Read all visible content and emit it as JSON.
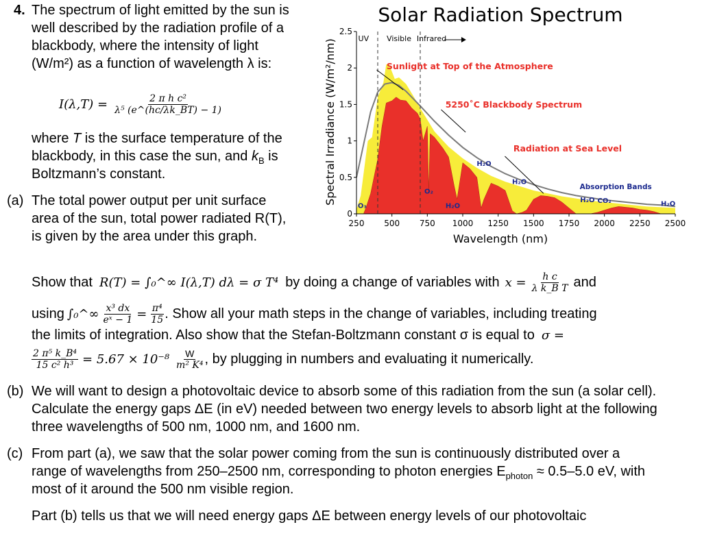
{
  "problem": {
    "number": "4.",
    "intro": "The spectrum of light emitted by the sun is well described by the radiation profile of a blackbody, where the intensity of light (W/m²) as a function of wavelength λ is:",
    "formula_lhs": "I(λ,T) =",
    "formula_num": "2 π h c²",
    "formula_den": "λ⁵ (e^(hc/λk_BT) − 1)",
    "where_text_1": "where ",
    "where_T": "T",
    "where_text_2": " is the surface temperature of the blackbody, in this case the sun, and ",
    "where_kB": "k",
    "where_kB_sub": "B",
    "where_text_3": " is Boltzmann’s constant.",
    "part_a_label": "(a)",
    "part_a_text": "The total power output per unit surface area of the sun, total power radiated R(T), is given by the area under this graph.",
    "show_1": "Show that",
    "show_eq": "R(T) = ∫₀^∞ I(λ,T) dλ = σ T⁴",
    "show_2": "by doing a change of variables with",
    "show_x": "x =",
    "show_x_num": "h c",
    "show_x_den": "λ k_B T",
    "show_3": "and",
    "using_1": "using",
    "using_eq": "∫₀^∞",
    "using_num": "x³ dx",
    "using_den": "eˣ − 1",
    "using_eq2": "=",
    "using_num2": "π⁴",
    "using_den2": "15",
    "using_2": ". Show all your math steps in the change of variables, including treating",
    "line3": "the limits of integration. Also show that the Stefan-Boltzmann constant σ is equal to",
    "sigma_eq": "σ =",
    "sig_num": "2 π⁵ k_B⁴",
    "sig_den": "15 c² h³",
    "sig_val": "= 5.67 × 10⁻⁸",
    "sig_unit_num": "W",
    "sig_unit_den": "m² K⁴",
    "sig_tail": ", by plugging in numbers and evaluating it numerically.",
    "part_b_label": "(b)",
    "part_b_text": "We will want to design a photovoltaic device to absorb some of this radiation from the sun (a solar cell). Calculate the energy gaps ΔE (in eV) needed between two energy levels to absorb light at the following three wavelengths of 500 nm, 1000 nm, and 1600 nm.",
    "part_c_label": "(c)",
    "part_c_text_1": "From part (a), we saw that the solar power coming from the sun is continuously distributed over a range of wavelengths from 250–2500 nm, corresponding to photon energies E",
    "part_c_sub": "photon",
    "part_c_text_2": " ≈ 0.5–5.0 eV, with most of it around the 500 nm visible region.",
    "part_c_text_3": "Part (b) tells us that we will need energy gaps ΔE between energy levels of our photovoltaic"
  },
  "chart_data": {
    "type": "area",
    "title": "Solar Radiation Spectrum",
    "xlabel": "Wavelength (nm)",
    "ylabel": "Spectral Irradiance (W/m²/nm)",
    "xlim": [
      250,
      2500
    ],
    "ylim": [
      0,
      2.5
    ],
    "xticks": [
      "250",
      "500",
      "750",
      "1000",
      "1250",
      "1500",
      "1750",
      "2000",
      "2250",
      "2500"
    ],
    "yticks": [
      "0",
      "0.5",
      "1",
      "1.5",
      "2",
      "2.5"
    ],
    "regions": [
      "UV",
      "Visible",
      "Infrared"
    ],
    "region_bounds_nm": [
      400,
      700
    ],
    "series": [
      {
        "name": "5250˚C Blackbody Spectrum",
        "color": "#7a7a7a",
        "x": [
          250,
          300,
          350,
          400,
          450,
          500,
          550,
          600,
          650,
          700,
          800,
          900,
          1000,
          1100,
          1200,
          1300,
          1400,
          1500,
          1600,
          1700,
          1800,
          1900,
          2000,
          2100,
          2200,
          2300,
          2400,
          2500
        ],
        "y": [
          0.5,
          0.95,
          1.4,
          1.67,
          1.78,
          1.8,
          1.76,
          1.68,
          1.58,
          1.48,
          1.27,
          1.08,
          0.91,
          0.77,
          0.65,
          0.55,
          0.47,
          0.4,
          0.34,
          0.29,
          0.25,
          0.22,
          0.19,
          0.17,
          0.15,
          0.13,
          0.12,
          0.1
        ]
      },
      {
        "name": "Sunlight at Top of the Atmosphere",
        "color": "#f7ec3a",
        "x": [
          250,
          280,
          300,
          330,
          360,
          400,
          440,
          460,
          480,
          500,
          520,
          550,
          600,
          650,
          700,
          800,
          900,
          1000,
          1100,
          1200,
          1300,
          1400,
          1500,
          1600,
          1700,
          1800,
          1900,
          2000,
          2100,
          2200,
          2300,
          2400,
          2500
        ],
        "y": [
          0.06,
          0.25,
          0.55,
          1.0,
          1.05,
          1.6,
          1.8,
          2.05,
          2.05,
          1.95,
          1.85,
          1.87,
          1.78,
          1.62,
          1.45,
          1.13,
          0.92,
          0.76,
          0.63,
          0.52,
          0.44,
          0.38,
          0.32,
          0.28,
          0.24,
          0.21,
          0.18,
          0.16,
          0.14,
          0.12,
          0.1,
          0.09,
          0.08
        ]
      },
      {
        "name": "Radiation at Sea Level",
        "color": "#e9302a",
        "x": [
          300,
          320,
          350,
          400,
          430,
          460,
          500,
          530,
          560,
          600,
          640,
          680,
          700,
          720,
          750,
          760,
          770,
          800,
          860,
          900,
          940,
          960,
          1000,
          1050,
          1100,
          1130,
          1150,
          1200,
          1250,
          1300,
          1350,
          1380,
          1420,
          1450,
          1500,
          1550,
          1600,
          1650,
          1700,
          1750,
          1800,
          1850,
          1900,
          1950,
          2000,
          2050,
          2100,
          2150,
          2200,
          2250,
          2300,
          2350,
          2400,
          2450,
          2500
        ],
        "y": [
          0,
          0.1,
          0.28,
          0.75,
          1.2,
          1.52,
          1.55,
          1.6,
          1.56,
          1.55,
          1.45,
          1.38,
          1.3,
          1.0,
          1.2,
          0.3,
          1.1,
          1.05,
          0.9,
          0.78,
          0.38,
          0.2,
          0.7,
          0.62,
          0.5,
          0.08,
          0.2,
          0.42,
          0.38,
          0.32,
          0.04,
          0.0,
          0.02,
          0.05,
          0.2,
          0.25,
          0.24,
          0.22,
          0.16,
          0.08,
          0.0,
          0.0,
          0.0,
          0.02,
          0.05,
          0.08,
          0.1,
          0.09,
          0.08,
          0.06,
          0.05,
          0.03,
          0.0,
          0.0,
          0.0
        ]
      }
    ],
    "annotations": [
      {
        "text": "Sunlight at Top of the Atmosphere",
        "color": "#e9302a"
      },
      {
        "text": "5250˚C Blackbody Spectrum",
        "color": "#e9302a"
      },
      {
        "text": "Radiation at Sea Level",
        "color": "#e9302a"
      },
      {
        "text": "Absorption Bands",
        "color": "#1c2a8e"
      }
    ],
    "absorption_labels": [
      {
        "text": "O₃",
        "x": 290,
        "y": 0.05
      },
      {
        "text": "O₂",
        "x": 760,
        "y": 0.25
      },
      {
        "text": "H₂O",
        "x": 930,
        "y": 0.05
      },
      {
        "text": "H₂O",
        "x": 1150,
        "y": 0.63
      },
      {
        "text": "H₂O",
        "x": 1400,
        "y": 0.38
      },
      {
        "text": "H₂O",
        "x": 1880,
        "y": 0.13
      },
      {
        "text": "CO₂",
        "x": 2000,
        "y": 0.12
      },
      {
        "text": "H₂O",
        "x": 2450,
        "y": 0.08
      }
    ]
  }
}
